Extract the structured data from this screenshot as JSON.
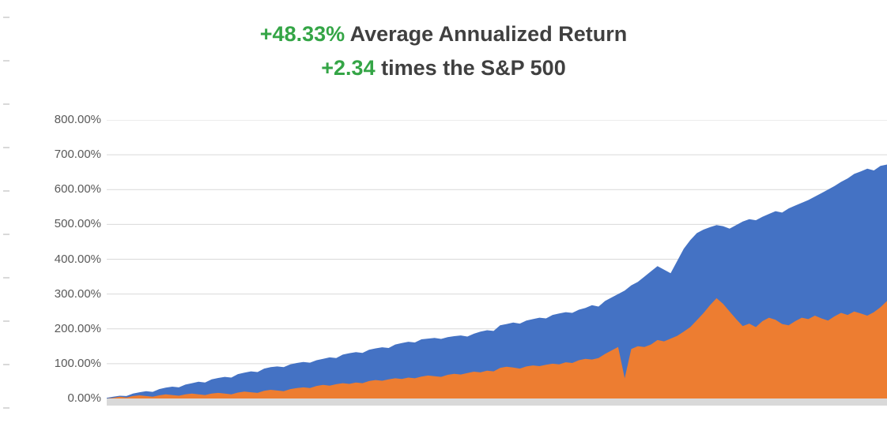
{
  "title": {
    "line1_highlight": "+48.33%",
    "line1_rest": " Average Annualized Return",
    "line2_highlight": "+2.34",
    "line2_rest": " times the S&P 500",
    "highlight_color": "#34a546",
    "text_color": "#404040"
  },
  "chart_data": {
    "type": "area",
    "title": "+48.33% Average Annualized Return / +2.34 times the S&P 500",
    "xlabel": "",
    "ylabel": "",
    "ylim": [
      0,
      800
    ],
    "y_tick_step": 100,
    "y_tick_labels_top_to_bottom": [
      "800.00%",
      "700.00%",
      "600.00%",
      "500.00%",
      "400.00%",
      "300.00%",
      "200.00%",
      "100.00%",
      "0.00%"
    ],
    "grid": true,
    "grid_color": "#d9d9d9",
    "legend_position": "none",
    "baseline_band_color": "#d9d9d9",
    "series": [
      {
        "name": "blue-area-series",
        "color": "#4472c4",
        "values": [
          2,
          5,
          8,
          7,
          14,
          18,
          21,
          19,
          27,
          31,
          34,
          32,
          40,
          44,
          48,
          46,
          55,
          59,
          62,
          60,
          70,
          74,
          78,
          76,
          86,
          90,
          92,
          90,
          98,
          102,
          105,
          103,
          110,
          114,
          118,
          116,
          126,
          130,
          133,
          131,
          140,
          144,
          147,
          145,
          155,
          159,
          163,
          161,
          170,
          172,
          174,
          171,
          176,
          179,
          181,
          178,
          186,
          192,
          196,
          194,
          210,
          214,
          218,
          215,
          224,
          228,
          232,
          230,
          240,
          244,
          248,
          246,
          255,
          260,
          268,
          264,
          280,
          290,
          300,
          310,
          325,
          335,
          350,
          365,
          380,
          370,
          360,
          395,
          430,
          455,
          475,
          485,
          492,
          498,
          495,
          488,
          498,
          508,
          515,
          512,
          522,
          530,
          538,
          534,
          546,
          554,
          562,
          570,
          580,
          590,
          600,
          610,
          622,
          632,
          645,
          652,
          660,
          655,
          668,
          672
        ]
      },
      {
        "name": "orange-area-series",
        "color": "#ed7d31",
        "values": [
          0,
          2,
          5,
          3,
          7,
          9,
          7,
          5,
          9,
          12,
          10,
          8,
          12,
          14,
          12,
          10,
          14,
          16,
          14,
          12,
          17,
          20,
          18,
          16,
          22,
          25,
          23,
          21,
          27,
          30,
          32,
          30,
          36,
          39,
          37,
          41,
          44,
          42,
          46,
          44,
          50,
          53,
          51,
          55,
          58,
          56,
          60,
          58,
          63,
          66,
          64,
          62,
          68,
          71,
          69,
          73,
          77,
          75,
          80,
          78,
          88,
          91,
          89,
          86,
          92,
          95,
          93,
          97,
          100,
          98,
          104,
          102,
          110,
          114,
          112,
          116,
          128,
          138,
          148,
          58,
          142,
          150,
          148,
          155,
          168,
          164,
          172,
          180,
          192,
          205,
          225,
          245,
          268,
          288,
          272,
          250,
          228,
          208,
          215,
          205,
          222,
          232,
          226,
          214,
          210,
          222,
          232,
          228,
          238,
          230,
          224,
          236,
          246,
          240,
          250,
          244,
          238,
          248,
          262,
          280
        ]
      }
    ]
  }
}
